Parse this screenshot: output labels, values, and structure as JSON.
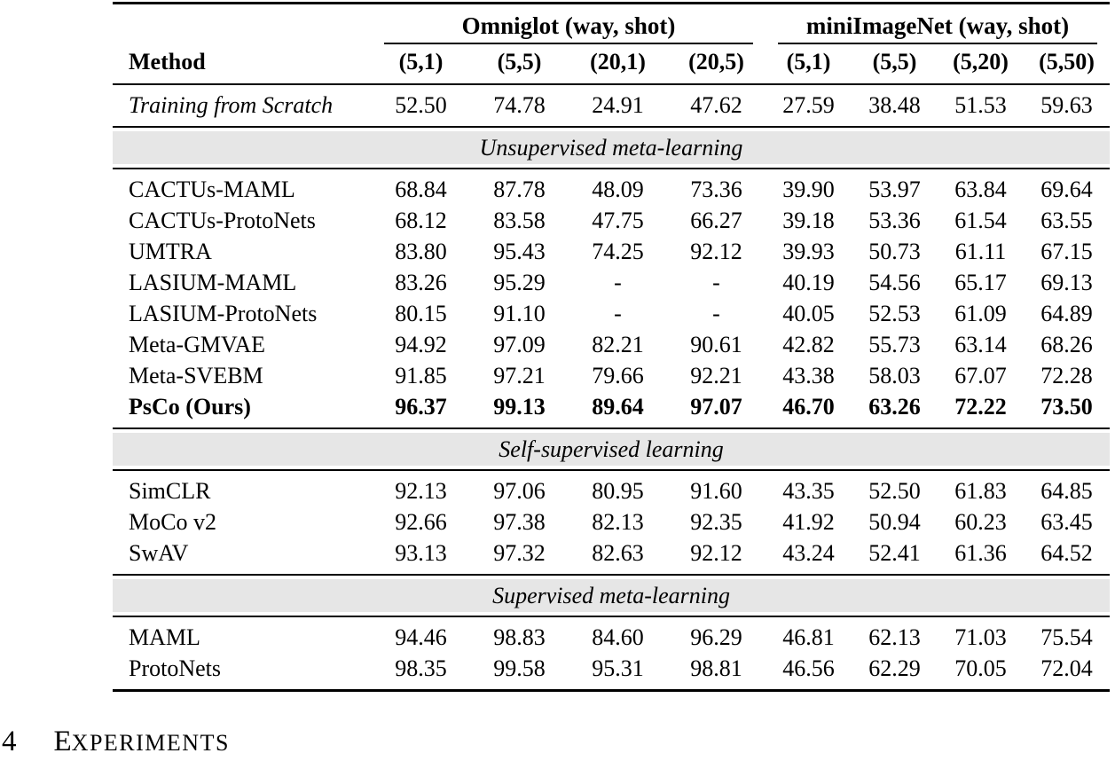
{
  "table": {
    "groups": [
      {
        "label": "Omniglot (way, shot)"
      },
      {
        "label": "miniImageNet (way, shot)"
      }
    ],
    "method_header": "Method",
    "columns": [
      "(5,1)",
      "(5,5)",
      "(20,1)",
      "(20,5)",
      "(5,1)",
      "(5,5)",
      "(5,20)",
      "(5,50)"
    ],
    "baseline_row": {
      "method": "Training from Scratch",
      "values": [
        "52.50",
        "74.78",
        "24.91",
        "47.62",
        "27.59",
        "38.48",
        "51.53",
        "59.63"
      ],
      "bold": false
    },
    "sections": [
      {
        "title": "Unsupervised meta-learning",
        "rows": [
          {
            "method": "CACTUs-MAML",
            "values": [
              "68.84",
              "87.78",
              "48.09",
              "73.36",
              "39.90",
              "53.97",
              "63.84",
              "69.64"
            ],
            "bold": false
          },
          {
            "method": "CACTUs-ProtoNets",
            "values": [
              "68.12",
              "83.58",
              "47.75",
              "66.27",
              "39.18",
              "53.36",
              "61.54",
              "63.55"
            ],
            "bold": false
          },
          {
            "method": "UMTRA",
            "values": [
              "83.80",
              "95.43",
              "74.25",
              "92.12",
              "39.93",
              "50.73",
              "61.11",
              "67.15"
            ],
            "bold": false
          },
          {
            "method": "LASIUM-MAML",
            "values": [
              "83.26",
              "95.29",
              "-",
              "-",
              "40.19",
              "54.56",
              "65.17",
              "69.13"
            ],
            "bold": false
          },
          {
            "method": "LASIUM-ProtoNets",
            "values": [
              "80.15",
              "91.10",
              "-",
              "-",
              "40.05",
              "52.53",
              "61.09",
              "64.89"
            ],
            "bold": false
          },
          {
            "method": "Meta-GMVAE",
            "values": [
              "94.92",
              "97.09",
              "82.21",
              "90.61",
              "42.82",
              "55.73",
              "63.14",
              "68.26"
            ],
            "bold": false
          },
          {
            "method": "Meta-SVEBM",
            "values": [
              "91.85",
              "97.21",
              "79.66",
              "92.21",
              "43.38",
              "58.03",
              "67.07",
              "72.28"
            ],
            "bold": false
          },
          {
            "method": "PsCo (Ours)",
            "values": [
              "96.37",
              "99.13",
              "89.64",
              "97.07",
              "46.70",
              "63.26",
              "72.22",
              "73.50"
            ],
            "bold": true
          }
        ]
      },
      {
        "title": "Self-supervised learning",
        "rows": [
          {
            "method": "SimCLR",
            "values": [
              "92.13",
              "97.06",
              "80.95",
              "91.60",
              "43.35",
              "52.50",
              "61.83",
              "64.85"
            ],
            "bold": false
          },
          {
            "method": "MoCo v2",
            "values": [
              "92.66",
              "97.38",
              "82.13",
              "92.35",
              "41.92",
              "50.94",
              "60.23",
              "63.45"
            ],
            "bold": false
          },
          {
            "method": "SwAV",
            "values": [
              "93.13",
              "97.32",
              "82.63",
              "92.12",
              "43.24",
              "52.41",
              "61.36",
              "64.52"
            ],
            "bold": false
          }
        ]
      },
      {
        "title": "Supervised meta-learning",
        "rows": [
          {
            "method": "MAML",
            "values": [
              "94.46",
              "98.83",
              "84.60",
              "96.29",
              "46.81",
              "62.13",
              "71.03",
              "75.54"
            ],
            "bold": false
          },
          {
            "method": "ProtoNets",
            "values": [
              "98.35",
              "99.58",
              "95.31",
              "98.81",
              "46.56",
              "62.29",
              "70.05",
              "72.04"
            ],
            "bold": false
          }
        ]
      }
    ]
  },
  "heading": {
    "number": "4",
    "title_first": "E",
    "title_rest": "XPERIMENTS"
  }
}
